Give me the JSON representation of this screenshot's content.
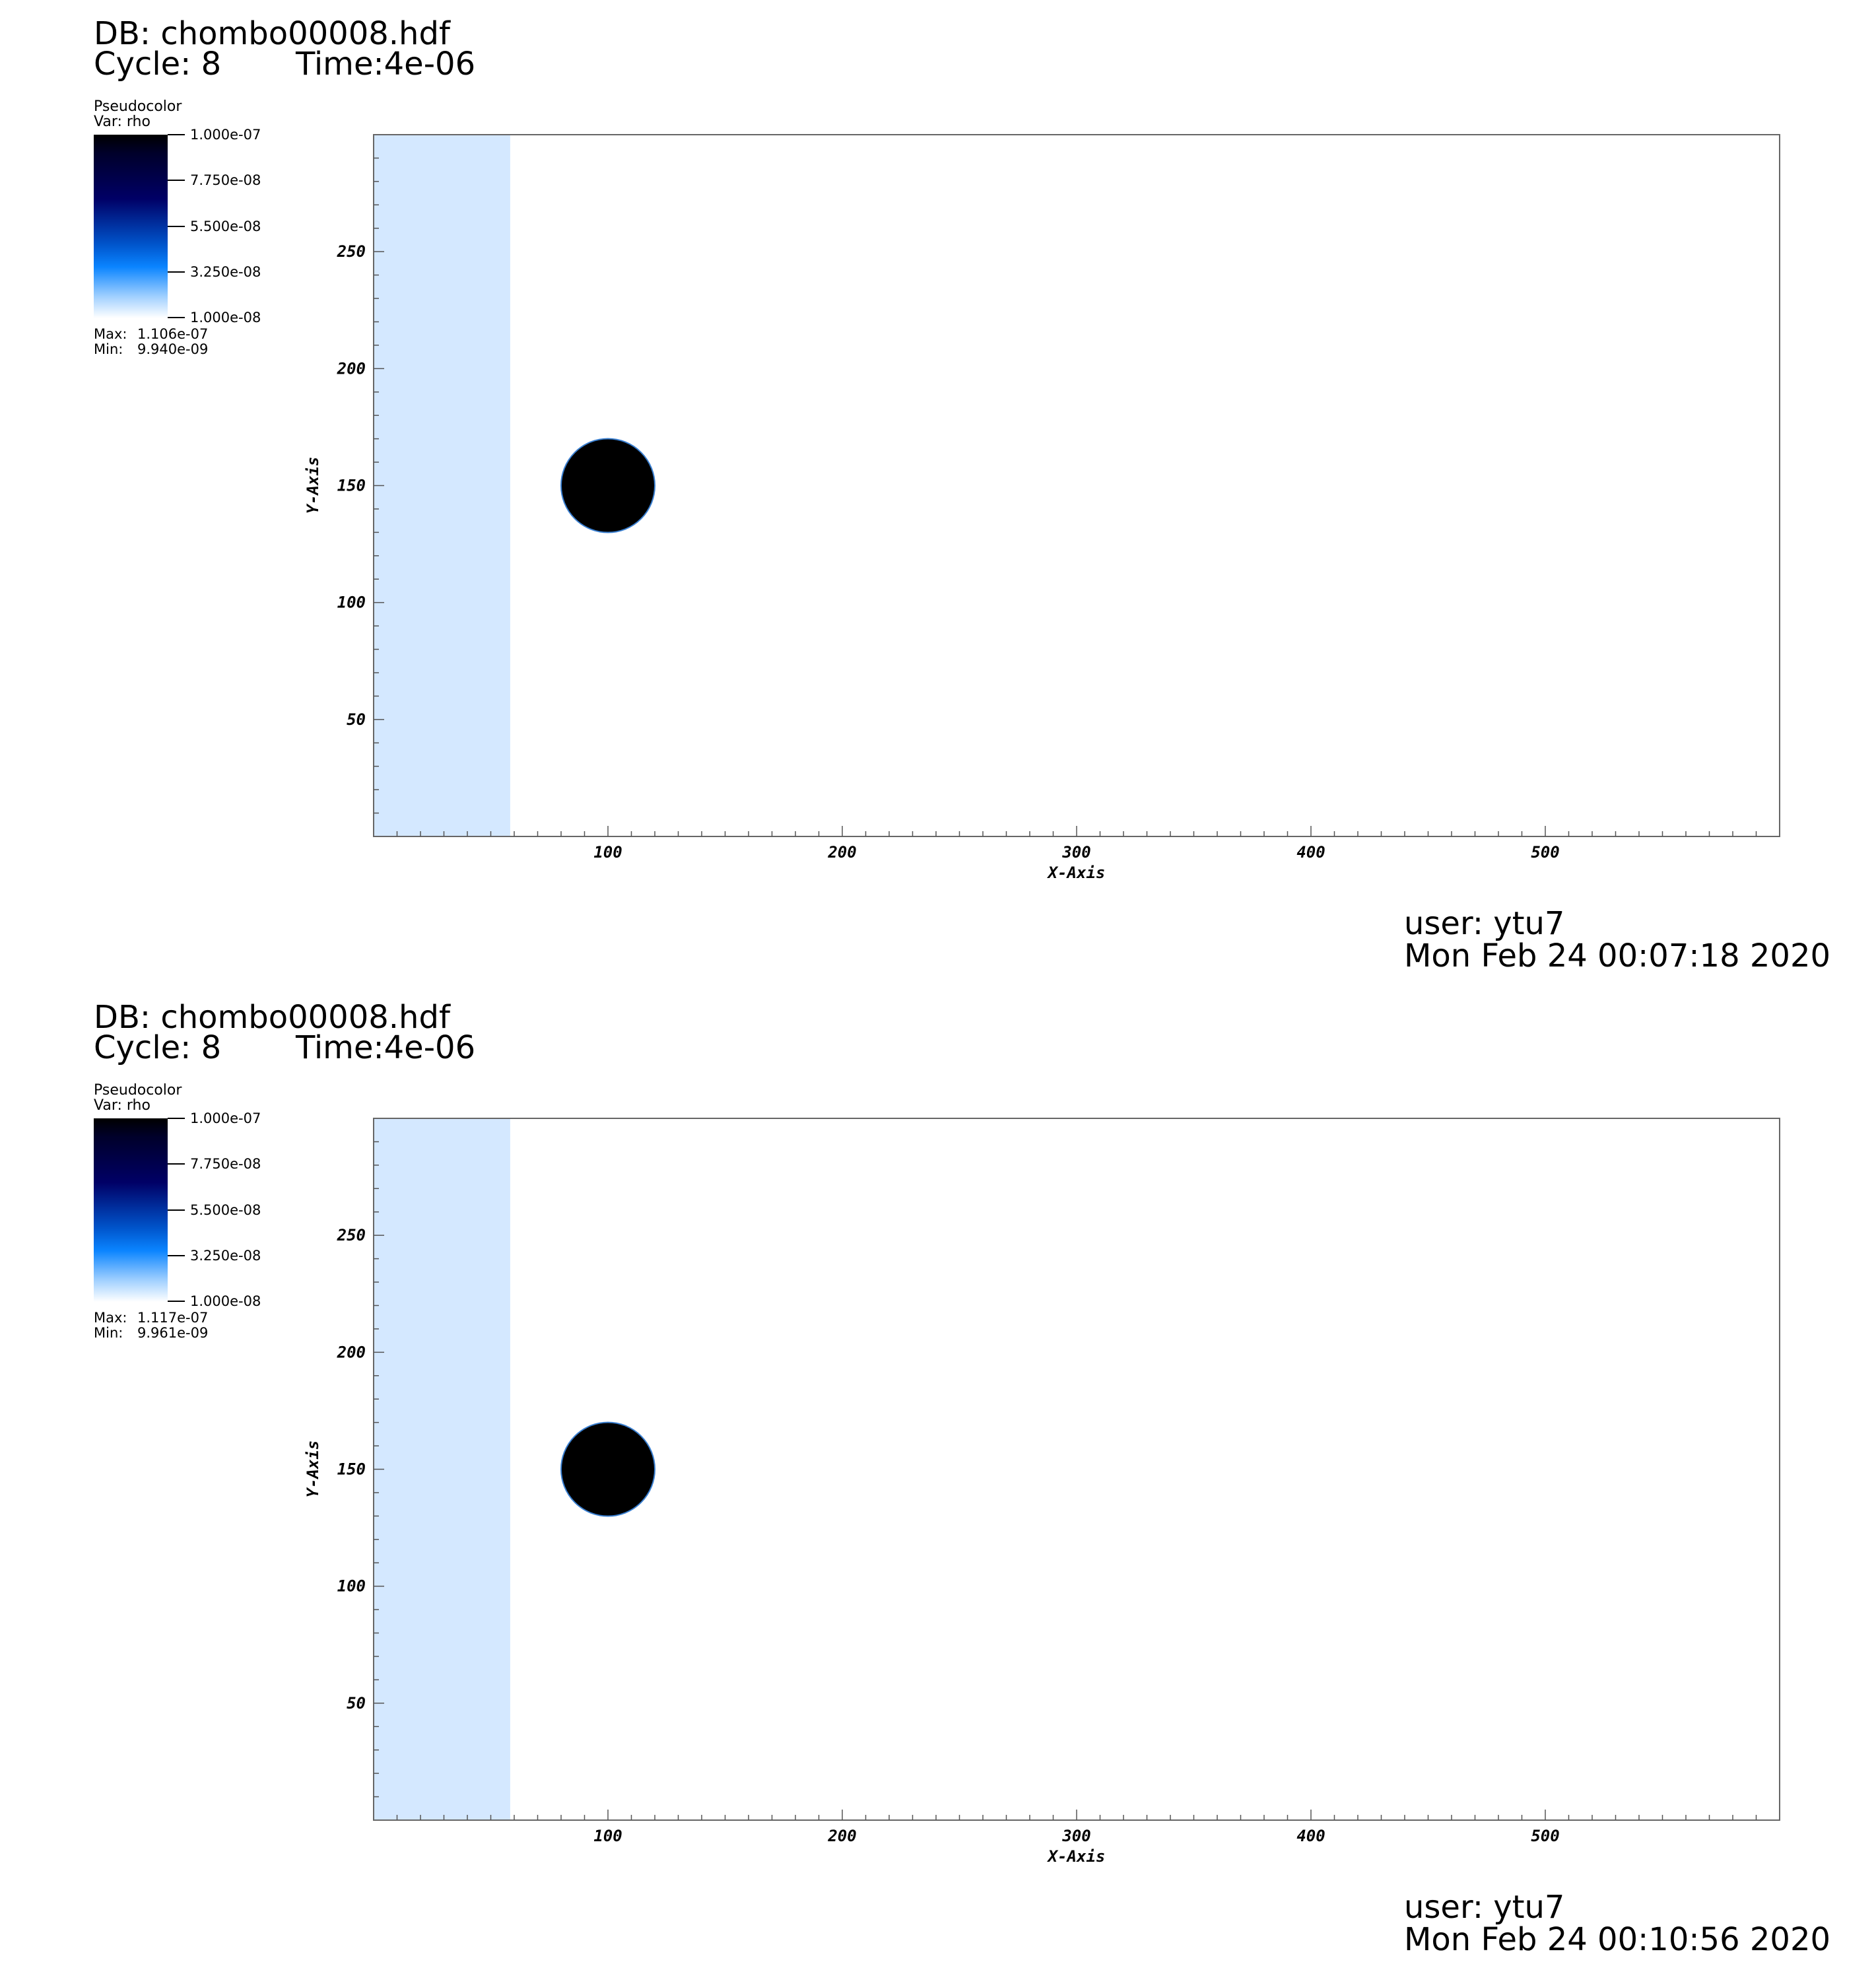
{
  "chart_data": [
    {
      "type": "heatmap",
      "db": "DB: chombo00008.hdf",
      "cycle": "Cycle: 8",
      "time": "Time:4e-06",
      "legend": {
        "title": "Pseudocolor",
        "var": "Var: rho",
        "ticks": [
          "1.000e-07",
          "7.750e-08",
          "5.500e-08",
          "3.250e-08",
          "1.000e-08"
        ],
        "max_label": "Max:",
        "max": "1.106e-07",
        "min_label": "Min:",
        "min": "9.940e-09",
        "colors": [
          "#000000",
          "#000066",
          "#0a84ff",
          "#ffffff"
        ]
      },
      "xlabel": "X-Axis",
      "ylabel": "Y-Axis",
      "xlim": [
        0,
        600
      ],
      "ylim": [
        0,
        300
      ],
      "xticks": [
        "100",
        "200",
        "300",
        "400",
        "500"
      ],
      "yticks": [
        "250",
        "200",
        "150",
        "100",
        "50"
      ],
      "features": {
        "band": {
          "x": [
            0,
            58
          ],
          "color": "#d4e8ff"
        },
        "circle": {
          "cx": 100,
          "cy": 150,
          "r": 20,
          "color": "#000000"
        }
      },
      "user": "user: ytu7",
      "date": "Mon Feb 24 00:07:18 2020"
    },
    {
      "type": "heatmap",
      "db": "DB: chombo00008.hdf",
      "cycle": "Cycle: 8",
      "time": "Time:4e-06",
      "legend": {
        "title": "Pseudocolor",
        "var": "Var: rho",
        "ticks": [
          "1.000e-07",
          "7.750e-08",
          "5.500e-08",
          "3.250e-08",
          "1.000e-08"
        ],
        "max_label": "Max:",
        "max": "1.117e-07",
        "min_label": "Min:",
        "min": "9.961e-09",
        "colors": [
          "#000000",
          "#000066",
          "#0a84ff",
          "#ffffff"
        ]
      },
      "xlabel": "X-Axis",
      "ylabel": "Y-Axis",
      "xlim": [
        0,
        600
      ],
      "ylim": [
        0,
        300
      ],
      "xticks": [
        "100",
        "200",
        "300",
        "400",
        "500"
      ],
      "yticks": [
        "250",
        "200",
        "150",
        "100",
        "50"
      ],
      "features": {
        "band": {
          "x": [
            0,
            58
          ],
          "color": "#d4e8ff"
        },
        "circle": {
          "cx": 100,
          "cy": 150,
          "r": 20,
          "color": "#000000"
        }
      },
      "user": "user: ytu7",
      "date": "Mon Feb 24 00:10:56 2020"
    }
  ]
}
